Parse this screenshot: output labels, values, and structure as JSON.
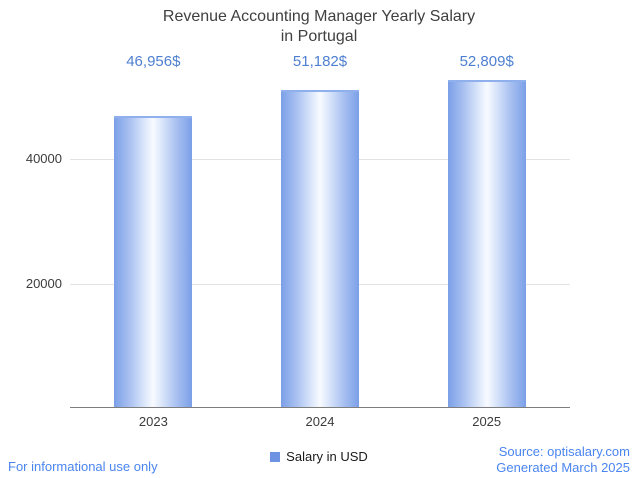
{
  "title": {
    "line1": "Revenue Accounting Manager Yearly Salary",
    "line2": "in Portugal"
  },
  "chart_data": {
    "type": "bar",
    "title": "Revenue Accounting Manager Yearly Salary in Portugal",
    "categories": [
      "2023",
      "2024",
      "2025"
    ],
    "values": [
      46956,
      51182,
      52809
    ],
    "value_labels": [
      "46,956$",
      "51,182$",
      "52,809$"
    ],
    "series_name": "Salary in USD",
    "xlabel": "",
    "ylabel": "",
    "ylim": [
      0,
      53600
    ],
    "yticks": [
      20000,
      40000
    ],
    "ytick_labels": [
      "20000",
      "40000"
    ],
    "grid": true,
    "legend_position": "bottom",
    "bar_color": "#7b9fe7",
    "bar_gradient_center": "#f7faff"
  },
  "legend": {
    "label": "Salary in USD",
    "swatch_color": "#6e93e2"
  },
  "footer": {
    "disclaimer": "For informational use only",
    "source": "Source: optisalary.com",
    "generated": "Generated March 2025"
  }
}
